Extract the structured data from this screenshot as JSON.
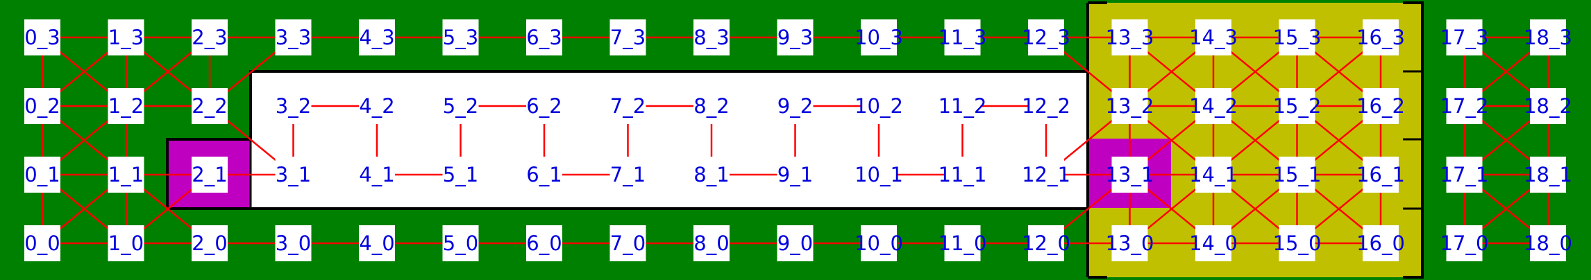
{
  "colors": {
    "outside": "#008000",
    "yellow_zone": "#c0c000",
    "highlight": "#c000c0",
    "room_floor": "#ffffff",
    "node_box": "#ffffff",
    "edge": "#ff0000",
    "wall": "#000000",
    "label": "#0000dd"
  },
  "grid": {
    "columns": 19,
    "rows": 4
  },
  "nodes": [
    "0_0",
    "1_0",
    "2_0",
    "3_0",
    "4_0",
    "5_0",
    "6_0",
    "7_0",
    "8_0",
    "9_0",
    "10_0",
    "11_0",
    "12_0",
    "13_0",
    "14_0",
    "15_0",
    "16_0",
    "17_0",
    "18_0",
    "0_1",
    "1_1",
    "2_1",
    "3_1",
    "4_1",
    "5_1",
    "6_1",
    "7_1",
    "8_1",
    "9_1",
    "10_1",
    "11_1",
    "12_1",
    "13_1",
    "14_1",
    "15_1",
    "16_1",
    "17_1",
    "18_1",
    "0_2",
    "1_2",
    "2_2",
    "3_2",
    "4_2",
    "5_2",
    "6_2",
    "7_2",
    "8_2",
    "9_2",
    "10_2",
    "11_2",
    "12_2",
    "13_2",
    "14_2",
    "15_2",
    "16_2",
    "17_2",
    "18_2",
    "0_3",
    "1_3",
    "2_3",
    "3_3",
    "4_3",
    "5_3",
    "6_3",
    "7_3",
    "8_3",
    "9_3",
    "10_3",
    "11_3",
    "12_3",
    "13_3",
    "14_3",
    "15_3",
    "16_3",
    "17_3",
    "18_3"
  ],
  "highlighted_nodes": [
    "2_1",
    "13_1"
  ],
  "edges": [
    [
      "0_3",
      "1_3"
    ],
    [
      "1_3",
      "2_3"
    ],
    [
      "2_3",
      "3_3"
    ],
    [
      "3_3",
      "4_3"
    ],
    [
      "4_3",
      "5_3"
    ],
    [
      "5_3",
      "6_3"
    ],
    [
      "6_3",
      "7_3"
    ],
    [
      "7_3",
      "8_3"
    ],
    [
      "8_3",
      "9_3"
    ],
    [
      "9_3",
      "10_3"
    ],
    [
      "10_3",
      "11_3"
    ],
    [
      "11_3",
      "12_3"
    ],
    [
      "12_3",
      "13_3"
    ],
    [
      "13_3",
      "14_3"
    ],
    [
      "14_3",
      "15_3"
    ],
    [
      "15_3",
      "16_3"
    ],
    [
      "17_3",
      "18_3"
    ],
    [
      "0_0",
      "1_0"
    ],
    [
      "1_0",
      "2_0"
    ],
    [
      "2_0",
      "3_0"
    ],
    [
      "3_0",
      "4_0"
    ],
    [
      "4_0",
      "5_0"
    ],
    [
      "5_0",
      "6_0"
    ],
    [
      "6_0",
      "7_0"
    ],
    [
      "7_0",
      "8_0"
    ],
    [
      "8_0",
      "9_0"
    ],
    [
      "9_0",
      "10_0"
    ],
    [
      "10_0",
      "11_0"
    ],
    [
      "11_0",
      "12_0"
    ],
    [
      "12_0",
      "13_0"
    ],
    [
      "13_0",
      "14_0"
    ],
    [
      "14_0",
      "15_0"
    ],
    [
      "15_0",
      "16_0"
    ],
    [
      "17_0",
      "18_0"
    ],
    [
      "0_2",
      "1_2"
    ],
    [
      "1_2",
      "2_2"
    ],
    [
      "0_1",
      "1_1"
    ],
    [
      "1_1",
      "2_1"
    ],
    [
      "2_1",
      "3_1"
    ],
    [
      "13_2",
      "14_2"
    ],
    [
      "14_2",
      "15_2"
    ],
    [
      "15_2",
      "16_2"
    ],
    [
      "13_1",
      "14_1"
    ],
    [
      "14_1",
      "15_1"
    ],
    [
      "15_1",
      "16_1"
    ],
    [
      "12_1",
      "13_1"
    ],
    [
      "17_2",
      "18_2"
    ],
    [
      "17_1",
      "18_1"
    ],
    [
      "3_2",
      "4_2"
    ],
    [
      "5_2",
      "6_2"
    ],
    [
      "7_2",
      "8_2"
    ],
    [
      "9_2",
      "10_2"
    ],
    [
      "11_2",
      "12_2"
    ],
    [
      "4_1",
      "5_1"
    ],
    [
      "6_1",
      "7_1"
    ],
    [
      "8_1",
      "9_1"
    ],
    [
      "10_1",
      "11_1"
    ],
    [
      "0_3",
      "0_2"
    ],
    [
      "0_2",
      "0_1"
    ],
    [
      "0_1",
      "0_0"
    ],
    [
      "1_3",
      "1_2"
    ],
    [
      "1_2",
      "1_1"
    ],
    [
      "1_1",
      "1_0"
    ],
    [
      "2_3",
      "2_2"
    ],
    [
      "13_3",
      "13_2"
    ],
    [
      "13_2",
      "13_1"
    ],
    [
      "13_1",
      "13_0"
    ],
    [
      "14_3",
      "14_2"
    ],
    [
      "14_2",
      "14_1"
    ],
    [
      "14_1",
      "14_0"
    ],
    [
      "15_3",
      "15_2"
    ],
    [
      "15_2",
      "15_1"
    ],
    [
      "15_1",
      "15_0"
    ],
    [
      "16_3",
      "16_2"
    ],
    [
      "16_2",
      "16_1"
    ],
    [
      "16_1",
      "16_0"
    ],
    [
      "17_3",
      "17_2"
    ],
    [
      "17_2",
      "17_1"
    ],
    [
      "17_1",
      "17_0"
    ],
    [
      "18_3",
      "18_2"
    ],
    [
      "18_2",
      "18_1"
    ],
    [
      "18_1",
      "18_0"
    ],
    [
      "3_2",
      "3_1"
    ],
    [
      "4_2",
      "4_1"
    ],
    [
      "5_2",
      "5_1"
    ],
    [
      "6_2",
      "6_1"
    ],
    [
      "7_2",
      "7_1"
    ],
    [
      "8_2",
      "8_1"
    ],
    [
      "9_2",
      "9_1"
    ],
    [
      "10_2",
      "10_1"
    ],
    [
      "11_2",
      "11_1"
    ],
    [
      "12_2",
      "12_1"
    ],
    [
      "0_3",
      "1_2"
    ],
    [
      "1_3",
      "0_2"
    ],
    [
      "1_3",
      "2_2"
    ],
    [
      "2_3",
      "1_2"
    ],
    [
      "0_2",
      "1_1"
    ],
    [
      "1_2",
      "0_1"
    ],
    [
      "0_1",
      "1_0"
    ],
    [
      "1_1",
      "0_0"
    ],
    [
      "1_1",
      "2_0"
    ],
    [
      "2_1",
      "1_0"
    ],
    [
      "3_3",
      "2_2"
    ],
    [
      "2_2",
      "3_1"
    ],
    [
      "12_3",
      "13_2"
    ],
    [
      "13_3",
      "14_2"
    ],
    [
      "14_3",
      "13_2"
    ],
    [
      "14_3",
      "15_2"
    ],
    [
      "15_3",
      "14_2"
    ],
    [
      "15_3",
      "16_2"
    ],
    [
      "16_3",
      "15_2"
    ],
    [
      "13_2",
      "14_1"
    ],
    [
      "14_2",
      "13_1"
    ],
    [
      "14_2",
      "15_1"
    ],
    [
      "15_2",
      "14_1"
    ],
    [
      "15_2",
      "16_1"
    ],
    [
      "16_2",
      "15_1"
    ],
    [
      "13_1",
      "14_0"
    ],
    [
      "14_1",
      "13_0"
    ],
    [
      "14_1",
      "15_0"
    ],
    [
      "15_1",
      "14_0"
    ],
    [
      "15_1",
      "16_0"
    ],
    [
      "16_1",
      "15_0"
    ],
    [
      "12_1",
      "13_2"
    ],
    [
      "12_0",
      "13_1"
    ],
    [
      "17_3",
      "18_2"
    ],
    [
      "18_3",
      "17_2"
    ],
    [
      "17_2",
      "18_1"
    ],
    [
      "18_2",
      "17_1"
    ],
    [
      "17_1",
      "18_0"
    ],
    [
      "18_1",
      "17_0"
    ]
  ]
}
